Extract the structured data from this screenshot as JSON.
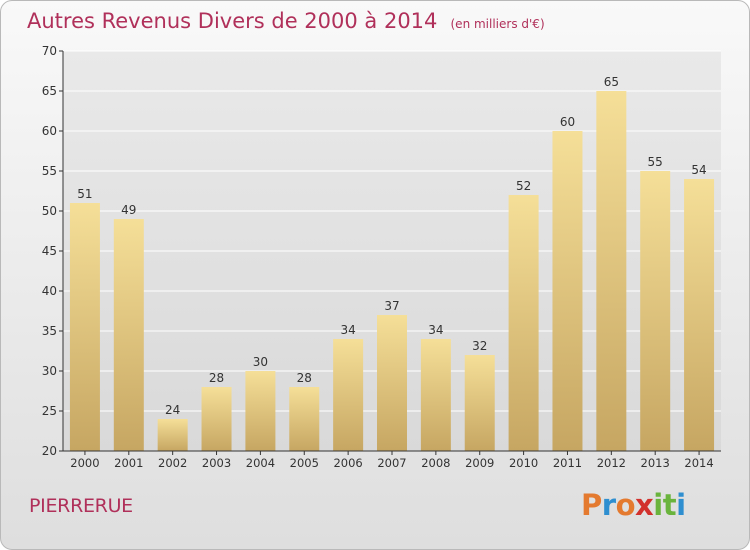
{
  "chart_data": {
    "type": "bar",
    "title": "Autres Revenus Divers de 2000 à 2014",
    "subtitle": "(en milliers d'€)",
    "categories": [
      "2000",
      "2001",
      "2002",
      "2003",
      "2004",
      "2005",
      "2006",
      "2007",
      "2008",
      "2009",
      "2010",
      "2011",
      "2012",
      "2013",
      "2014"
    ],
    "values": [
      51,
      49,
      24,
      28,
      30,
      28,
      34,
      37,
      34,
      32,
      52,
      60,
      65,
      55,
      54
    ],
    "ylim": [
      20,
      70
    ],
    "yticks": [
      20,
      25,
      30,
      35,
      40,
      45,
      50,
      55,
      60,
      65,
      70
    ],
    "grid": true,
    "legend": "none",
    "bar_color_top": "#f5df98",
    "bar_color_bottom": "#c6a662"
  },
  "footer": {
    "location": "PIERRERUE",
    "brand": "Proxiti"
  },
  "colors": {
    "title": "#b0305a",
    "grid": "#ffffff",
    "axis": "#333333",
    "logo_letters": [
      "#e47a2f",
      "#2f8fd0",
      "#e47a2f",
      "#d2312d",
      "#6ab43d",
      "#6ab43d",
      "#2f8fd0"
    ]
  }
}
